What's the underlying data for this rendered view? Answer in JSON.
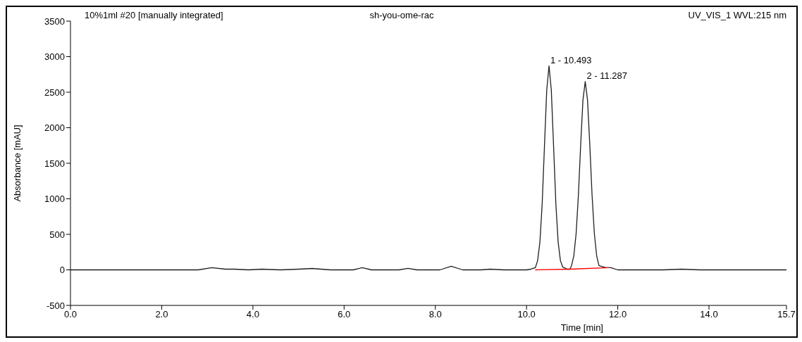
{
  "chart_data": {
    "type": "line",
    "title": "sh-you-ome-rac",
    "xlabel": "Time [min]",
    "ylabel": "Absorbance [mAU]",
    "annotations": [
      "10%1ml #20 [manually integrated]",
      "UV_VIS_1 WVL:215 nm",
      {
        "text": "1 - 10.493",
        "x": 10.493,
        "y": 2870
      },
      {
        "text": "2 - 11.287",
        "x": 11.287,
        "y": 2650
      }
    ],
    "xlim": [
      0,
      15.7
    ],
    "xticks": [
      {
        "value": 0,
        "label": "0.0"
      },
      {
        "value": 2,
        "label": "2.0"
      },
      {
        "value": 4,
        "label": "4.0"
      },
      {
        "value": 6,
        "label": "6.0"
      },
      {
        "value": 8,
        "label": "8.0"
      },
      {
        "value": 10,
        "label": "10.0"
      },
      {
        "value": 12,
        "label": "12.0"
      },
      {
        "value": 14,
        "label": "14.0"
      },
      {
        "value": 15.7,
        "label": "15.7"
      }
    ],
    "ylim": [
      -500,
      3500
    ],
    "yticks": [
      -500,
      0,
      500,
      1000,
      1500,
      2000,
      2500,
      3000,
      3500
    ],
    "marker": "none",
    "line_style": "solid",
    "series": [
      {
        "color": "#202020",
        "x": [
          0,
          2.8,
          3.1,
          3.4,
          3.6,
          3.9,
          4.2,
          4.6,
          5.0,
          5.3,
          5.7,
          6.2,
          6.4,
          6.6,
          7.2,
          7.4,
          7.6,
          8.1,
          8.35,
          8.6,
          9.0,
          9.2,
          9.5,
          10.0,
          10.093,
          10.193,
          10.243,
          10.293,
          10.343,
          10.393,
          10.443,
          10.493,
          10.543,
          10.593,
          10.643,
          10.693,
          10.743,
          10.793,
          10.893,
          10.95,
          10.987,
          11.037,
          11.087,
          11.137,
          11.187,
          11.237,
          11.287,
          11.337,
          11.387,
          11.437,
          11.487,
          11.537,
          11.587,
          11.687,
          11.75,
          11.85,
          12.0,
          12.5,
          13.0,
          13.4,
          13.8,
          14.5,
          15.7
        ],
        "values": [
          0,
          0,
          30,
          10,
          10,
          0,
          10,
          0,
          10,
          20,
          0,
          0,
          30,
          0,
          0,
          20,
          0,
          0,
          50,
          0,
          0,
          10,
          0,
          0,
          10,
          30,
          130,
          390,
          930,
          1740,
          2530,
          2870,
          2530,
          1740,
          930,
          390,
          130,
          40,
          10,
          10,
          60,
          200,
          510,
          1050,
          1760,
          2390,
          2650,
          2390,
          1760,
          1050,
          510,
          200,
          60,
          40,
          30,
          30,
          0,
          0,
          0,
          10,
          0,
          0,
          0
        ]
      },
      {
        "color": "#ff0000",
        "x": [
          10.2,
          10.95,
          11.8
        ],
        "values": [
          0,
          10,
          30
        ]
      }
    ]
  }
}
